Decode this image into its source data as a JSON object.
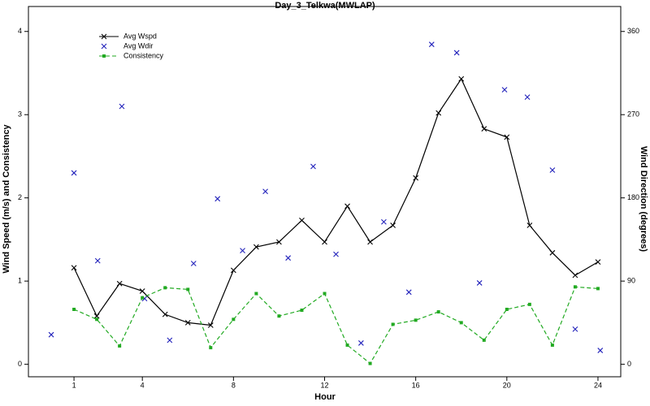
{
  "chart_data": {
    "type": "line",
    "title": "Day_3_Telkwa(MWLAP)",
    "xlabel": "Hour",
    "ylabel": "Wind Speed (m/s) and Consistency",
    "y2label": "Wind Direction (degrees)",
    "x": [
      1,
      2,
      3,
      4,
      5,
      6,
      7,
      8,
      9,
      10,
      11,
      12,
      13,
      14,
      15,
      16,
      17,
      18,
      19,
      20,
      21,
      22,
      23,
      24
    ],
    "xlim": [
      -1,
      25
    ],
    "xticks": [
      1,
      4,
      8,
      12,
      16,
      20,
      24
    ],
    "ylim": [
      -0.15,
      4.3
    ],
    "yticks": [
      0,
      1,
      2,
      3,
      4
    ],
    "y2lim": [
      -13.5,
      387
    ],
    "y2ticks": [
      0,
      90,
      180,
      270,
      360
    ],
    "legend": "upper left",
    "series": [
      {
        "name": "Avg Wspd",
        "color": "#000000",
        "marker": "x",
        "linestyle": "solid",
        "values": [
          1.16,
          0.58,
          0.97,
          0.88,
          0.6,
          0.5,
          0.47,
          1.13,
          1.41,
          1.47,
          1.73,
          1.47,
          1.9,
          1.47,
          1.67,
          2.24,
          3.02,
          3.43,
          2.83,
          2.73,
          1.67,
          1.34,
          1.07,
          1.23
        ]
      },
      {
        "name": "Avg Wdir",
        "color": "#2222bb",
        "marker": "x",
        "linestyle": "none",
        "axis": "y2",
        "x": [
          0,
          1,
          2.04,
          3.1,
          4.1,
          5.2,
          6.25,
          7.3,
          8.4,
          9.4,
          10.4,
          11.5,
          12.5,
          13.6,
          14.6,
          15.7,
          16.7,
          17.8,
          18.8,
          19.9,
          20.9,
          22,
          23,
          24.1
        ],
        "values": [
          32,
          207,
          112,
          279,
          71,
          26,
          109,
          179,
          123,
          187,
          115,
          214,
          119,
          23,
          154,
          78,
          346,
          337,
          88,
          297,
          289,
          210,
          38,
          15
        ]
      },
      {
        "name": "Consistency",
        "color": "#22aa22",
        "marker": "square",
        "linestyle": "dashed",
        "values": [
          0.66,
          0.54,
          0.22,
          0.8,
          0.92,
          0.9,
          0.2,
          0.54,
          0.85,
          0.58,
          0.65,
          0.85,
          0.23,
          0.01,
          0.48,
          0.53,
          0.63,
          0.5,
          0.29,
          0.66,
          0.72,
          0.23,
          0.93,
          0.91
        ]
      }
    ]
  }
}
